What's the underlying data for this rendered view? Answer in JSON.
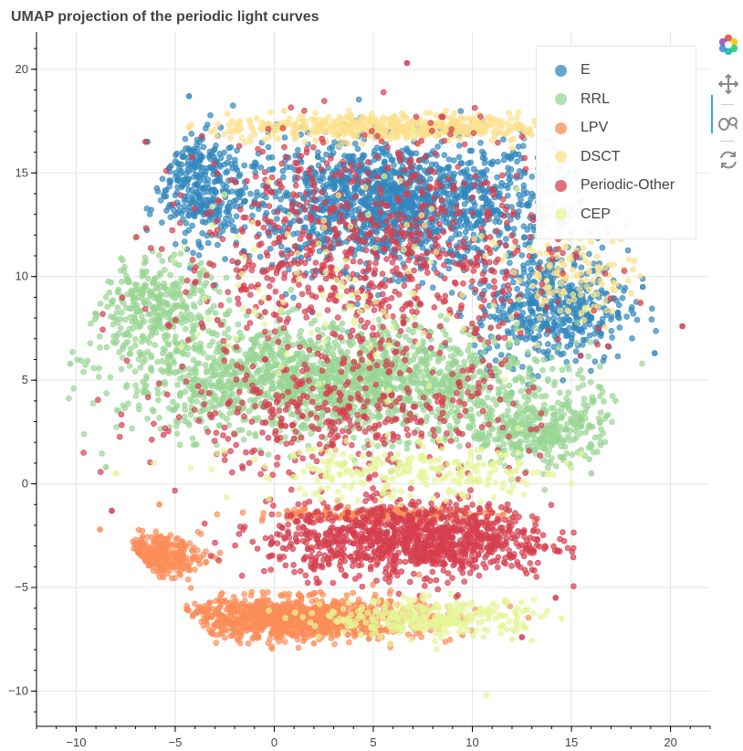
{
  "chart_data": {
    "type": "scatter",
    "title": "UMAP projection of the periodic light curves",
    "xlabel": "",
    "ylabel": "",
    "xlim": [
      -12,
      22
    ],
    "ylim": [
      -11.7,
      21.8
    ],
    "x_ticks": [
      -10,
      -5,
      0,
      5,
      10,
      15,
      20
    ],
    "y_ticks": [
      -10,
      -5,
      0,
      5,
      10,
      15,
      20
    ],
    "x_tick_labels": [
      "−10",
      "−5",
      "0",
      "5",
      "10",
      "15",
      "20"
    ],
    "y_tick_labels": [
      "−10",
      "−5",
      "0",
      "5",
      "10",
      "15",
      "20"
    ],
    "grid": true,
    "legend_position": "top-right",
    "series": [
      {
        "name": "E",
        "color": "#3288bd",
        "regions": [
          {
            "center": [
              6,
              13.5
            ],
            "spread": [
              7.2,
              2.8
            ],
            "count": 1500
          },
          {
            "center": [
              14,
              8.5
            ],
            "spread": [
              3.5,
              2.5
            ],
            "count": 500
          },
          {
            "center": [
              -4,
              14.5
            ],
            "spread": [
              2.2,
              2.5
            ],
            "count": 300
          }
        ],
        "points": [
          [
            -4.3,
            18.7
          ],
          [
            -6.4,
            16.5
          ],
          [
            19.2,
            6.3
          ],
          [
            18.6,
            9.5
          ],
          [
            15.2,
            15.0
          ]
        ]
      },
      {
        "name": "RRL",
        "color": "#99d594",
        "regions": [
          {
            "center": [
              3,
              5.0
            ],
            "spread": [
              9.5,
              2.4
            ],
            "count": 1700
          },
          {
            "center": [
              -6,
              8.5
            ],
            "spread": [
              3.2,
              2.2
            ],
            "count": 350
          },
          {
            "center": [
              13.5,
              2.5
            ],
            "spread": [
              3.5,
              1.5
            ],
            "count": 350
          }
        ],
        "points": [
          [
            -10.3,
            5.8
          ],
          [
            -9.0,
            8.2
          ],
          [
            16.0,
            0.5
          ],
          [
            -8.5,
            0.8
          ]
        ]
      },
      {
        "name": "LPV",
        "color": "#fc8d59",
        "regions": [
          {
            "center": [
              1,
              -6.5
            ],
            "spread": [
              6.0,
              0.9
            ],
            "count": 1100
          },
          {
            "center": [
              -6.5,
              -3.5
            ],
            "spread": [
              2.5,
              0.9
            ],
            "count": 260
          },
          {
            "center": [
              6,
              -1.5
            ],
            "spread": [
              5.5,
              0.3
            ],
            "count": 220
          }
        ],
        "points": [
          [
            -8.8,
            -2.2
          ],
          [
            -5.8,
            -1.0
          ],
          [
            2.0,
            -7.7
          ],
          [
            9.5,
            -7.3
          ]
        ]
      },
      {
        "name": "DSCT",
        "color": "#fee08b",
        "regions": [
          {
            "center": [
              6,
              17.2
            ],
            "spread": [
              8.0,
              0.6
            ],
            "count": 500
          },
          {
            "center": [
              15,
              10.0
            ],
            "spread": [
              3.0,
              2.0
            ],
            "count": 120
          }
        ],
        "points": [
          [
            0.5,
            18.0
          ],
          [
            12.0,
            16.2
          ],
          [
            17.5,
            11.8
          ],
          [
            18.0,
            9.2
          ]
        ]
      },
      {
        "name": "Periodic-Other",
        "color": "#d53e4f",
        "regions": [
          {
            "center": [
              7,
              -2.7
            ],
            "spread": [
              6.5,
              1.6
            ],
            "count": 1100
          },
          {
            "center": [
              5,
              11.0
            ],
            "spread": [
              9.0,
              5.5
            ],
            "count": 900
          },
          {
            "center": [
              3,
              3.0
            ],
            "spread": [
              9.0,
              2.5
            ],
            "count": 350
          }
        ],
        "points": [
          [
            6.7,
            20.3
          ],
          [
            20.6,
            7.6
          ],
          [
            14.2,
            -5.5
          ],
          [
            -8.2,
            -1.3
          ],
          [
            12.5,
            -7.4
          ],
          [
            -6.5,
            16.5
          ]
        ]
      },
      {
        "name": "CEP",
        "color": "#e6f598",
        "regions": [
          {
            "center": [
              8,
              -6.5
            ],
            "spread": [
              5.0,
              0.8
            ],
            "count": 320
          },
          {
            "center": [
              7,
              0.5
            ],
            "spread": [
              8.0,
              1.2
            ],
            "count": 250
          },
          {
            "center": [
              5,
              10.0
            ],
            "spread": [
              9.0,
              5.0
            ],
            "count": 120
          }
        ],
        "points": [
          [
            10.7,
            -10.2
          ],
          [
            -8.0,
            0.5
          ],
          [
            14.5,
            -6.5
          ],
          [
            12.0,
            -7.5
          ]
        ]
      }
    ]
  },
  "toolbar": {
    "icons": [
      "bokeh-logo-icon",
      "pan-icon",
      "wheel-zoom-icon",
      "reset-icon"
    ],
    "active": "pan-icon"
  }
}
